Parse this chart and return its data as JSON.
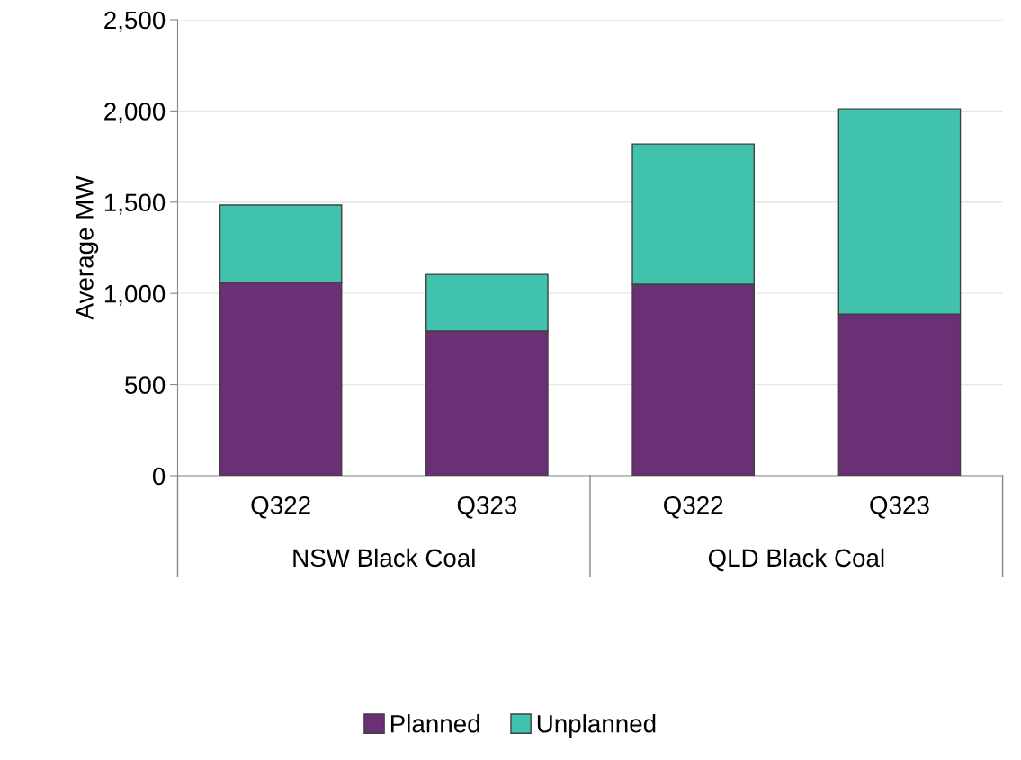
{
  "chart_data": {
    "type": "bar",
    "stacked": true,
    "ylabel": "Average MW",
    "categories": [
      "Q322",
      "Q323",
      "Q322",
      "Q323"
    ],
    "series": [
      {
        "name": "Planned",
        "color": "#6b2f75",
        "values": [
          1060,
          794,
          1050,
          887
        ]
      },
      {
        "name": "Unplanned",
        "color": "#41c2ad",
        "values": [
          424,
          310,
          769,
          1124
        ]
      }
    ],
    "annotations": [
      "NSW Black Coal",
      "QLD Black Coal"
    ],
    "ylim": [
      0,
      2500
    ],
    "yticks": [
      {
        "value": 0,
        "label": "0"
      },
      {
        "value": 500,
        "label": "500"
      },
      {
        "value": 1000,
        "label": "1,000"
      },
      {
        "value": 1500,
        "label": "1,500"
      },
      {
        "value": 2000,
        "label": "2,000"
      },
      {
        "value": 2500,
        "label": "2,500"
      }
    ],
    "grid": "y",
    "legend": "bottom"
  }
}
